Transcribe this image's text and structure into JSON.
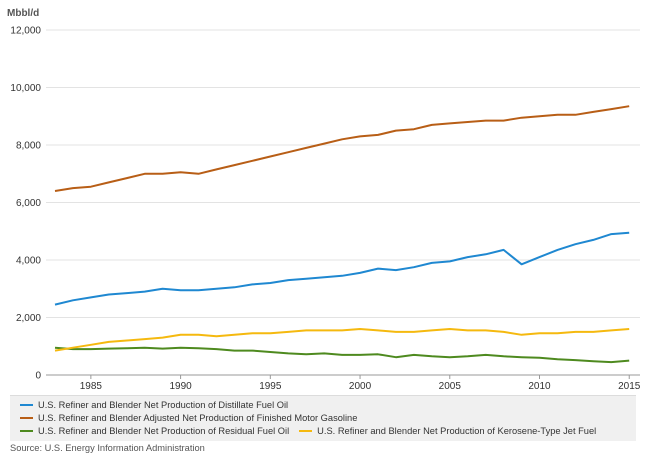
{
  "chart_data": {
    "type": "line",
    "unit_label": "Mbbl/d",
    "xlim": [
      1982.5,
      2015.6
    ],
    "ylim": [
      0,
      12000
    ],
    "x_ticks": [
      1985,
      1990,
      1995,
      2000,
      2005,
      2010,
      2015
    ],
    "x_tick_labels": [
      "1985",
      "1990",
      "1995",
      "2000",
      "2005",
      "2010",
      "2015"
    ],
    "y_ticks": [
      0,
      2000,
      4000,
      6000,
      8000,
      10000,
      12000
    ],
    "y_tick_labels": [
      "0",
      "2,000",
      "4,000",
      "6,000",
      "8,000",
      "10,000",
      "12,000"
    ],
    "grid": "horizontal",
    "legend_position": "bottom",
    "series": [
      {
        "name": "U.S. Refiner and Blender Net Production of Distillate Fuel Oil",
        "color": "#1f88d1",
        "x": [
          1983,
          1984,
          1985,
          1986,
          1987,
          1988,
          1989,
          1990,
          1991,
          1992,
          1993,
          1994,
          1995,
          1996,
          1997,
          1998,
          1999,
          2000,
          2001,
          2002,
          2003,
          2004,
          2005,
          2006,
          2007,
          2008,
          2009,
          2010,
          2011,
          2012,
          2013,
          2014,
          2015
        ],
        "values": [
          2450,
          2600,
          2700,
          2800,
          2850,
          2900,
          3000,
          2950,
          2950,
          3000,
          3050,
          3150,
          3200,
          3300,
          3350,
          3400,
          3450,
          3550,
          3700,
          3650,
          3750,
          3900,
          3950,
          4100,
          4200,
          4350,
          3850,
          4100,
          4350,
          4550,
          4700,
          4900,
          4950
        ]
      },
      {
        "name": "U.S. Refiner and Blender Adjusted Net Production of Finished Motor Gasoline",
        "color": "#b85e16",
        "x": [
          1983,
          1984,
          1985,
          1986,
          1987,
          1988,
          1989,
          1990,
          1991,
          1992,
          1993,
          1994,
          1995,
          1996,
          1997,
          1998,
          1999,
          2000,
          2001,
          2002,
          2003,
          2004,
          2005,
          2006,
          2007,
          2008,
          2009,
          2010,
          2011,
          2012,
          2013,
          2014,
          2015
        ],
        "values": [
          6400,
          6500,
          6550,
          6700,
          6850,
          7000,
          7000,
          7050,
          7000,
          7150,
          7300,
          7450,
          7600,
          7750,
          7900,
          8050,
          8200,
          8300,
          8350,
          8500,
          8550,
          8700,
          8750,
          8800,
          8850,
          8850,
          8950,
          9000,
          9050,
          9050,
          9150,
          9250,
          9350
        ]
      },
      {
        "name": "U.S. Refiner and Blender Net Production of Residual Fuel Oil",
        "color": "#4e8a1f",
        "x": [
          1983,
          1984,
          1985,
          1986,
          1987,
          1988,
          1989,
          1990,
          1991,
          1992,
          1993,
          1994,
          1995,
          1996,
          1997,
          1998,
          1999,
          2000,
          2001,
          2002,
          2003,
          2004,
          2005,
          2006,
          2007,
          2008,
          2009,
          2010,
          2011,
          2012,
          2013,
          2014,
          2015
        ],
        "values": [
          950,
          900,
          900,
          920,
          930,
          950,
          920,
          950,
          930,
          900,
          850,
          850,
          800,
          750,
          720,
          750,
          700,
          700,
          720,
          620,
          700,
          650,
          620,
          650,
          700,
          650,
          620,
          600,
          550,
          520,
          480,
          450,
          500
        ]
      },
      {
        "name": "U.S. Refiner and Blender Net Production of Kerosene-Type Jet Fuel",
        "color": "#f5b90f",
        "x": [
          1983,
          1984,
          1985,
          1986,
          1987,
          1988,
          1989,
          1990,
          1991,
          1992,
          1993,
          1994,
          1995,
          1996,
          1997,
          1998,
          1999,
          2000,
          2001,
          2002,
          2003,
          2004,
          2005,
          2006,
          2007,
          2008,
          2009,
          2010,
          2011,
          2012,
          2013,
          2014,
          2015
        ],
        "values": [
          850,
          950,
          1050,
          1150,
          1200,
          1250,
          1300,
          1400,
          1400,
          1350,
          1400,
          1450,
          1450,
          1500,
          1550,
          1550,
          1550,
          1600,
          1550,
          1500,
          1500,
          1550,
          1600,
          1550,
          1550,
          1500,
          1400,
          1450,
          1450,
          1500,
          1500,
          1550,
          1600
        ]
      }
    ],
    "source": "Source: U.S. Energy Information Administration"
  }
}
